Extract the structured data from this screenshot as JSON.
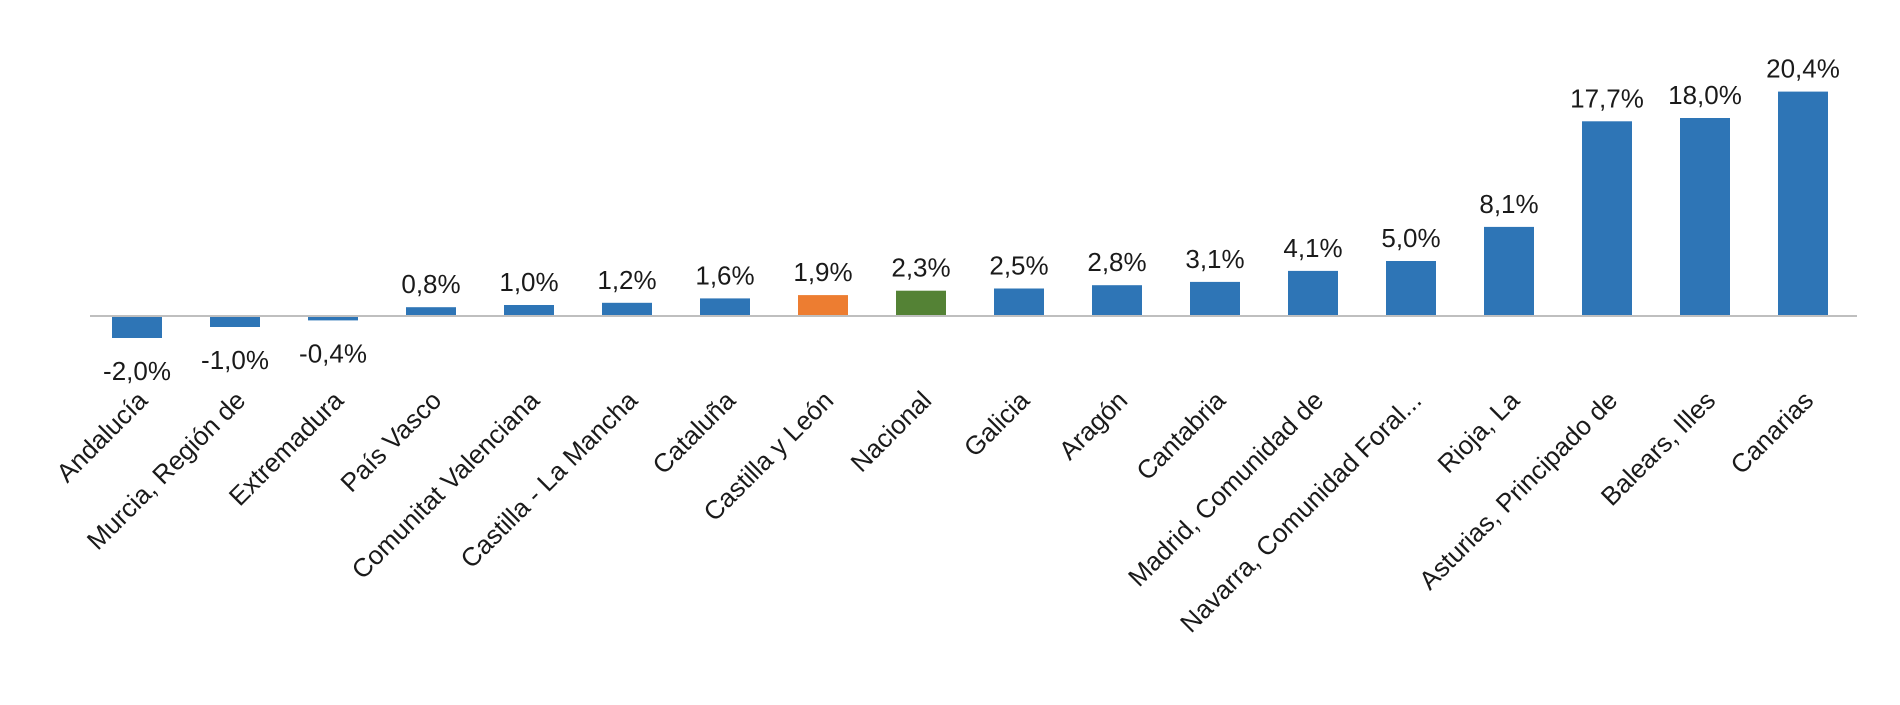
{
  "chart_data": {
    "type": "bar",
    "title": "",
    "xlabel": "",
    "ylabel": "",
    "ylim": [
      -3,
      22
    ],
    "grid": false,
    "legend": "none",
    "categories": [
      "Andalucía",
      "Murcia, Región de",
      "Extremadura",
      "País Vasco",
      "Comunitat Valenciana",
      "Castilla - La Mancha",
      "Cataluña",
      "Castilla y León",
      "Nacional",
      "Galicia",
      "Aragón",
      "Cantabria",
      "Madrid, Comunidad de",
      "Navarra, Comunidad Foral...",
      "Rioja, La",
      "Asturias, Principado de",
      "Balears, Illes",
      "Canarias"
    ],
    "values": [
      -2.0,
      -1.0,
      -0.4,
      0.8,
      1.0,
      1.2,
      1.6,
      1.9,
      2.3,
      2.5,
      2.8,
      3.1,
      4.1,
      5.0,
      8.1,
      17.7,
      18.0,
      20.4
    ],
    "data_labels": [
      "-2,0%",
      "-1,0%",
      "-0,4%",
      "0,8%",
      "1,0%",
      "1,2%",
      "1,6%",
      "1,9%",
      "2,3%",
      "2,5%",
      "2,8%",
      "3,1%",
      "4,1%",
      "5,0%",
      "8,1%",
      "17,7%",
      "18,0%",
      "20,4%"
    ],
    "colors": {
      "default": "#2e75b6",
      "Castilla y León": "#ed7d31",
      "Nacional": "#548235",
      "axis": "#bfbfbf"
    }
  }
}
